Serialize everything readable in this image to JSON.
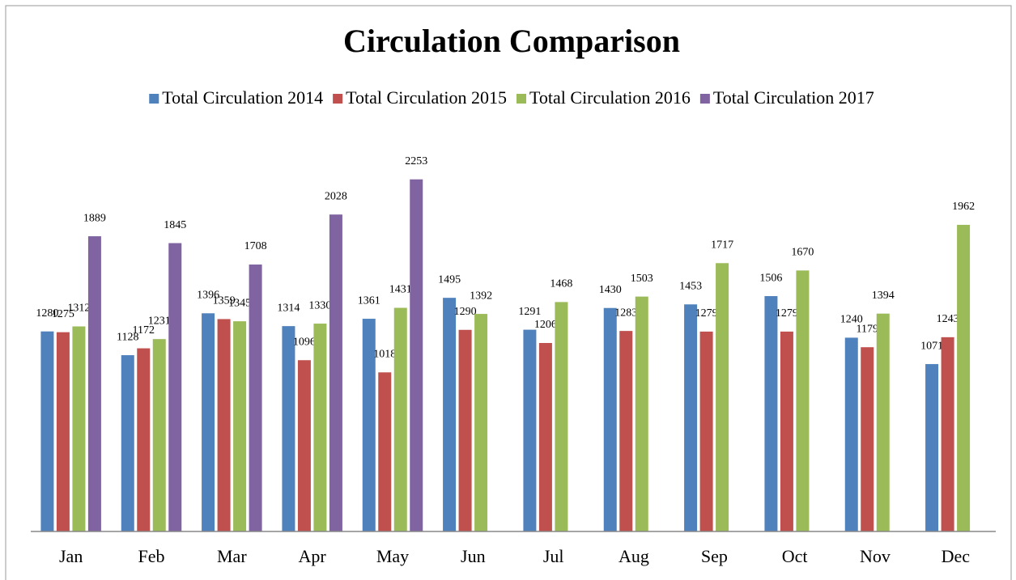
{
  "chart_data": {
    "type": "bar",
    "title": "Circulation Comparison",
    "categories": [
      "Jan",
      "Feb",
      "Mar",
      "Apr",
      "May",
      "Jun",
      "Jul",
      "Aug",
      "Sep",
      "Oct",
      "Nov",
      "Dec"
    ],
    "series": [
      {
        "name": "Total Circulation 2014",
        "color": "#4f81bd",
        "values": [
          1280,
          1128,
          1396,
          1314,
          1361,
          1495,
          1291,
          1430,
          1453,
          1506,
          1240,
          1071
        ]
      },
      {
        "name": "Total Circulation 2015",
        "color": "#c0504d",
        "values": [
          1275,
          1172,
          1359,
          1096,
          1018,
          1290,
          1206,
          1283,
          1279,
          1279,
          1179,
          1243
        ]
      },
      {
        "name": "Total Circulation 2016",
        "color": "#9bbb59",
        "values": [
          1312,
          1231,
          1345,
          1330,
          1431,
          1392,
          1468,
          1503,
          1717,
          1670,
          1394,
          1962
        ]
      },
      {
        "name": "Total Circulation 2017",
        "color": "#8064a2",
        "values": [
          1889,
          1845,
          1708,
          2028,
          2253,
          null,
          null,
          null,
          null,
          null,
          null,
          null
        ]
      }
    ],
    "ylim": [
      0,
      2500
    ],
    "legend": "top"
  }
}
